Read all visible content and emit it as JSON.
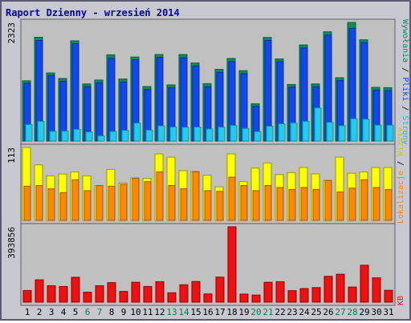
{
  "title": "Raport Dzienny -  wrzesień 2014",
  "chart_data": [
    {
      "type": "bar",
      "name": "top",
      "ymax_label": "2323",
      "ymax": 2323,
      "legend": [
        {
          "label": "Wywołania",
          "color": "#0e8a5a"
        },
        {
          "label": "Pliki",
          "color": "#1048f0"
        },
        {
          "label": "Strony",
          "color": "#22ccee"
        }
      ],
      "categories": [
        "1",
        "2",
        "3",
        "4",
        "5",
        "6",
        "7",
        "8",
        "9",
        "10",
        "11",
        "12",
        "13",
        "14",
        "15",
        "16",
        "17",
        "18",
        "19",
        "20",
        "21",
        "22",
        "23",
        "24",
        "25",
        "26",
        "27",
        "28",
        "29",
        "30",
        "31"
      ],
      "series": [
        {
          "name": "Wywołania",
          "values": [
            1180,
            2033,
            1334,
            1226,
            1963,
            1119,
            1195,
            1689,
            1216,
            1646,
            1068,
            1695,
            1100,
            1695,
            1529,
            1124,
            1404,
            1618,
            1379,
            731,
            2029,
            1608,
            1108,
            1883,
            1119,
            2140,
            1241,
            2323,
            1983,
            1052,
            1046
          ]
        },
        {
          "name": "Pliki",
          "values": [
            1130,
            1969,
            1284,
            1171,
            1907,
            1064,
            1140,
            1620,
            1157,
            1590,
            1010,
            1640,
            1042,
            1629,
            1471,
            1062,
            1346,
            1556,
            1318,
            679,
            1969,
            1552,
            1056,
            1823,
            1063,
            2075,
            1184,
            2207,
            1927,
            995,
            989
          ]
        },
        {
          "name": "Strony",
          "values": [
            324,
            385,
            190,
            193,
            229,
            178,
            101,
            187,
            209,
            351,
            213,
            297,
            275,
            270,
            274,
            238,
            272,
            307,
            247,
            185,
            291,
            338,
            355,
            386,
            649,
            367,
            300,
            437,
            428,
            311,
            309
          ]
        }
      ]
    },
    {
      "type": "bar",
      "name": "middle",
      "ymax_label": "113",
      "ymax": 113,
      "legend": [
        {
          "label": "Wizyty",
          "color": "#ffff00"
        },
        {
          "label": "Lokalizacje",
          "color": "#ff8800"
        }
      ],
      "categories": [
        "1",
        "2",
        "3",
        "4",
        "5",
        "6",
        "7",
        "8",
        "9",
        "10",
        "11",
        "12",
        "13",
        "14",
        "15",
        "16",
        "17",
        "18",
        "19",
        "20",
        "21",
        "22",
        "23",
        "24",
        "25",
        "26",
        "27",
        "28",
        "29",
        "30",
        "31"
      ],
      "series": [
        {
          "name": "Wizyty",
          "values": [
            113,
            86,
            69,
            72,
            75,
            69,
            54,
            79,
            58,
            66,
            65,
            103,
            98,
            77,
            76,
            70,
            52,
            103,
            60,
            81,
            89,
            71,
            74,
            82,
            72,
            62,
            98,
            73,
            75,
            82,
            82
          ]
        },
        {
          "name": "Lokalizacje",
          "values": [
            53,
            54,
            49,
            43,
            63,
            46,
            54,
            53,
            56,
            65,
            60,
            75,
            54,
            49,
            75,
            46,
            45,
            67,
            54,
            46,
            54,
            51,
            48,
            51,
            48,
            62,
            44,
            50,
            63,
            51,
            48
          ]
        }
      ]
    },
    {
      "type": "bar",
      "name": "bottom",
      "ymax_label": "393856",
      "ymax": 393856,
      "legend": [
        {
          "label": "KB",
          "color": "#ee1111"
        }
      ],
      "categories": [
        "1",
        "2",
        "3",
        "4",
        "5",
        "6",
        "7",
        "8",
        "9",
        "10",
        "11",
        "12",
        "13",
        "14",
        "15",
        "16",
        "17",
        "18",
        "19",
        "20",
        "21",
        "22",
        "23",
        "24",
        "25",
        "26",
        "27",
        "28",
        "29",
        "30",
        "31"
      ],
      "series": [
        {
          "name": "KB",
          "values": [
            61000,
            117000,
            86000,
            82000,
            130000,
            52000,
            86000,
            102000,
            56000,
            104000,
            82000,
            107000,
            49000,
            91000,
            108000,
            43000,
            131000,
            393856,
            42000,
            37000,
            104000,
            107000,
            60000,
            71000,
            76000,
            135000,
            146000,
            79000,
            193000,
            127000,
            62000
          ]
        }
      ]
    }
  ],
  "weekend_days": [
    6,
    7,
    13,
    14,
    20,
    21,
    27,
    28
  ],
  "colors": {
    "weekday_label": "#000080",
    "weekend_label": "#008040",
    "panel_bg": "#c0c0c0",
    "frame_bg": "#c8c8d0",
    "title": "#0000b0"
  }
}
